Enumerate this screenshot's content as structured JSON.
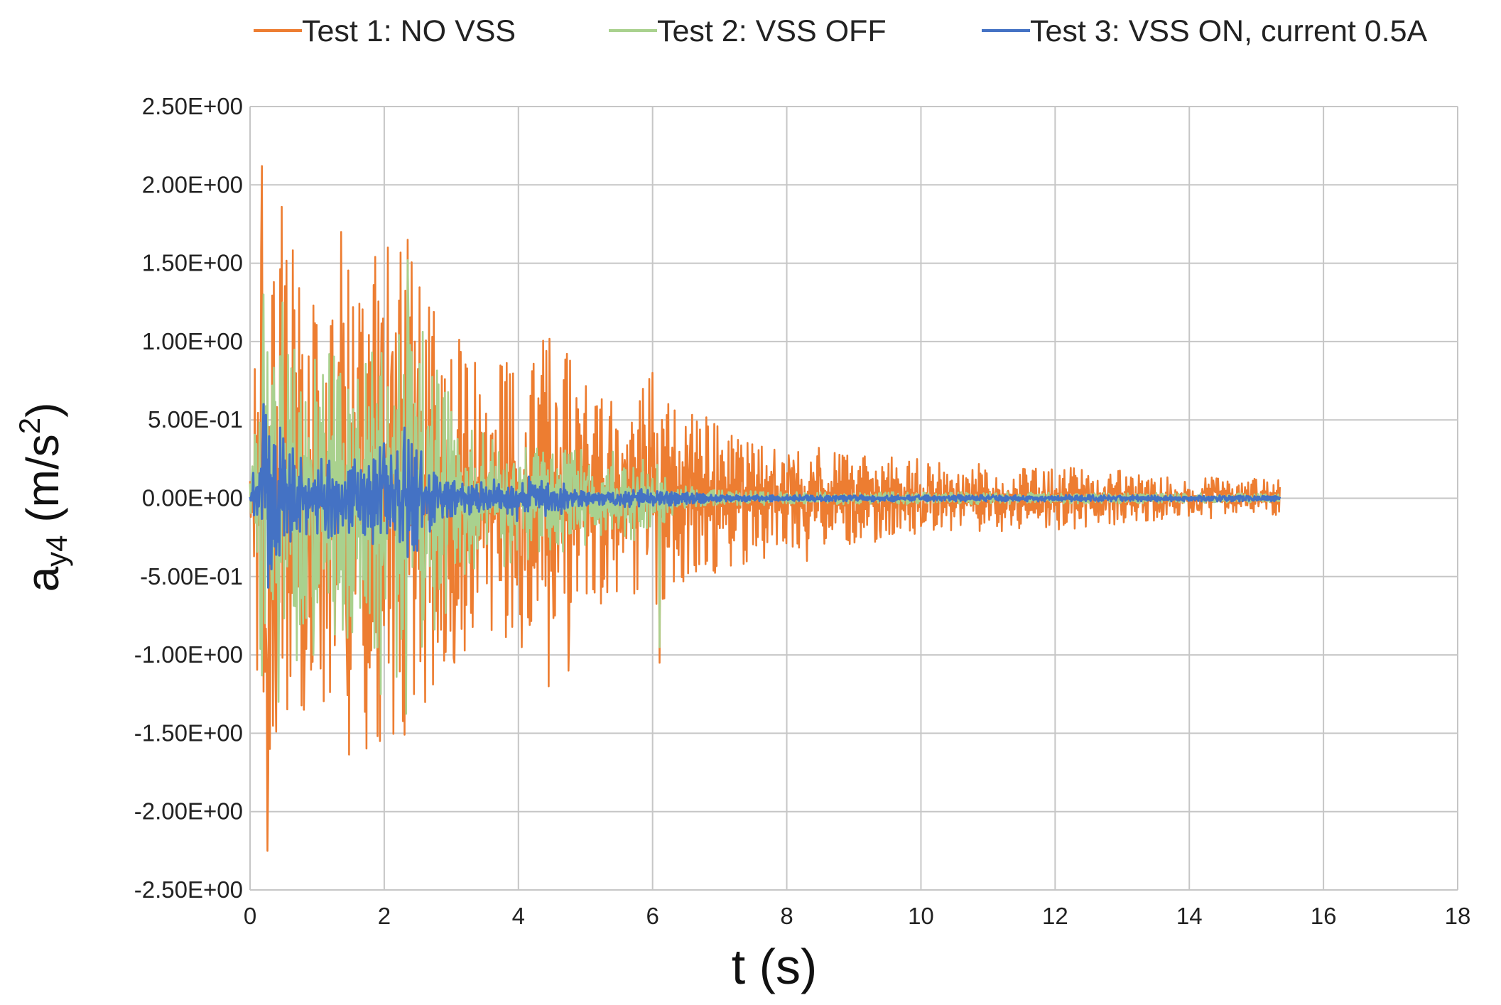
{
  "chart_data": {
    "type": "line",
    "title": "",
    "xlabel": "t (s)",
    "ylabel": {
      "base": "a",
      "subscript": "y4",
      "unit_prefix": " (m/s",
      "unit_sup": "2",
      "unit_suffix": ")"
    },
    "xlim": [
      0,
      18
    ],
    "ylim": [
      -2.5,
      2.5
    ],
    "x_ticks": [
      0,
      2,
      4,
      6,
      8,
      10,
      12,
      14,
      16,
      18
    ],
    "x_tick_labels": [
      "0",
      "2",
      "4",
      "6",
      "8",
      "10",
      "12",
      "14",
      "16",
      "18"
    ],
    "y_ticks": [
      2.5,
      2.0,
      1.5,
      1.0,
      0.5,
      0.0,
      -0.5,
      -1.0,
      -1.5,
      -2.0,
      -2.5
    ],
    "y_tick_labels": [
      "2.50E+00",
      "2.00E+00",
      "1.50E+00",
      "1.00E+00",
      "5.00E-01",
      "0.00E+00",
      "-5.00E-01",
      "-1.00E+00",
      "-1.50E+00",
      "-2.00E+00",
      "-2.50E+00"
    ],
    "grid": true,
    "legend_position": "top",
    "series": [
      {
        "name": "Test 1: NO VSS",
        "color": "#ED7D31",
        "t_end": 15.35,
        "envelope": {
          "t": [
            0,
            0.2,
            0.5,
            1.0,
            1.4,
            2.0,
            2.4,
            3.0,
            3.5,
            4.0,
            4.5,
            5.0,
            5.5,
            6.0,
            6.2,
            6.5,
            7.0,
            7.5,
            8.0,
            9.0,
            10.0,
            11.0,
            12.0,
            13.0,
            14.0,
            15.35
          ],
          "amp": [
            0.2,
            2.1,
            1.8,
            1.2,
            1.65,
            1.6,
            1.6,
            1.05,
            0.9,
            0.9,
            1.05,
            0.85,
            0.6,
            0.85,
            0.65,
            0.55,
            0.5,
            0.4,
            0.35,
            0.3,
            0.25,
            0.22,
            0.2,
            0.18,
            0.14,
            0.12
          ]
        },
        "peaks": [
          {
            "t": 0.18,
            "v": 2.12
          },
          {
            "t": 0.26,
            "v": -2.25
          },
          {
            "t": 0.3,
            "v": -1.6
          },
          {
            "t": 0.47,
            "v": 1.86
          },
          {
            "t": 0.8,
            "v": -1.35
          },
          {
            "t": 1.36,
            "v": 1.7
          },
          {
            "t": 1.94,
            "v": -1.55
          },
          {
            "t": 2.05,
            "v": 1.6
          },
          {
            "t": 2.35,
            "v": 1.65
          },
          {
            "t": 2.45,
            "v": -1.25
          },
          {
            "t": 3.05,
            "v": -1.05
          },
          {
            "t": 4.05,
            "v": -0.95
          },
          {
            "t": 4.45,
            "v": -1.2
          },
          {
            "t": 4.75,
            "v": -1.1
          },
          {
            "t": 6.0,
            "v": 0.8
          },
          {
            "t": 6.1,
            "v": -1.05
          },
          {
            "t": 8.3,
            "v": -0.4
          },
          {
            "t": 9.4,
            "v": -0.25
          }
        ]
      },
      {
        "name": "Test 2: VSS OFF",
        "color": "#A9D18E",
        "t_end": 15.35,
        "envelope": {
          "t": [
            0,
            0.1,
            0.2,
            0.5,
            1.0,
            1.5,
            2.0,
            2.4,
            2.7,
            3.0,
            3.5,
            4.0,
            4.5,
            5.0,
            5.5,
            6.0,
            6.2,
            6.5,
            7.0,
            8.0,
            10.0,
            15.35
          ],
          "amp": [
            0.1,
            0.8,
            1.3,
            1.2,
            0.9,
            1.0,
            1.0,
            1.5,
            1.0,
            0.7,
            0.5,
            0.4,
            0.4,
            0.3,
            0.3,
            0.25,
            0.15,
            0.08,
            0.05,
            0.04,
            0.04,
            0.03
          ]
        },
        "peaks": [
          {
            "t": 0.2,
            "v": 1.3
          },
          {
            "t": 0.42,
            "v": -1.3
          },
          {
            "t": 0.48,
            "v": 1.25
          },
          {
            "t": 0.95,
            "v": -1.0
          },
          {
            "t": 1.95,
            "v": -1.25
          },
          {
            "t": 2.35,
            "v": 1.52
          },
          {
            "t": 6.1,
            "v": -0.95
          }
        ]
      },
      {
        "name": "Test 3: VSS ON, current 0.5A",
        "color": "#4472C4",
        "t_end": 15.35,
        "envelope": {
          "t": [
            0,
            0.1,
            0.2,
            0.4,
            0.8,
            1.2,
            1.6,
            2.0,
            2.4,
            2.8,
            3.2,
            3.6,
            4.0,
            4.5,
            5.0,
            6.0,
            6.5,
            7.0,
            8.0,
            15.35
          ],
          "amp": [
            0.05,
            0.3,
            0.55,
            0.45,
            0.3,
            0.25,
            0.25,
            0.35,
            0.4,
            0.15,
            0.1,
            0.12,
            0.15,
            0.12,
            0.05,
            0.06,
            0.04,
            0.02,
            0.02,
            0.02
          ]
        },
        "peaks": [
          {
            "t": 0.2,
            "v": 0.6
          },
          {
            "t": 0.27,
            "v": -0.57
          },
          {
            "t": 0.45,
            "v": 0.45
          },
          {
            "t": 2.0,
            "v": 0.35
          },
          {
            "t": 2.3,
            "v": 0.45
          }
        ]
      }
    ]
  }
}
